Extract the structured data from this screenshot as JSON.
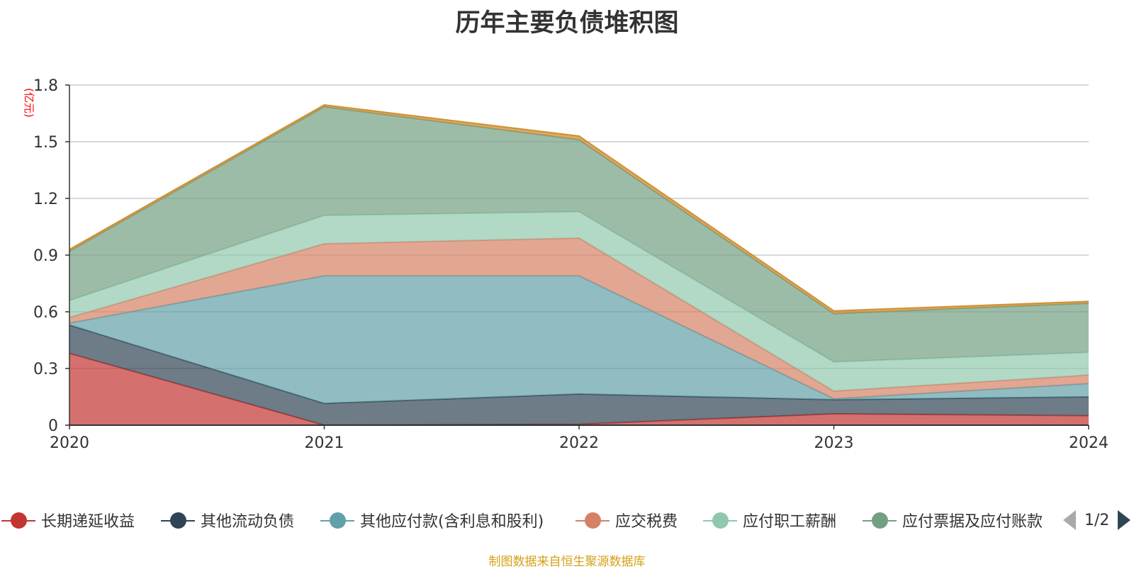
{
  "chart_data": {
    "type": "area",
    "stacked": true,
    "title": "历年主要负债堆积图",
    "ylabel": "(亿元)",
    "xlabel": "",
    "categories": [
      "2020",
      "2021",
      "2022",
      "2023",
      "2024"
    ],
    "ylim": [
      0,
      1.8
    ],
    "yticks": [
      "0",
      "0.3",
      "0.6",
      "0.9",
      "1.2",
      "1.5",
      "1.8"
    ],
    "grid": true,
    "legend_position": "bottom",
    "series": [
      {
        "name": "长期递延收益",
        "color": "#c23531",
        "values": [
          0.38,
          0.0,
          0.005,
          0.06,
          0.05
        ]
      },
      {
        "name": "其他流动负债",
        "color": "#2f4554",
        "values": [
          0.15,
          0.115,
          0.16,
          0.075,
          0.1
        ]
      },
      {
        "name": "其他应付款(含利息和股利)",
        "color": "#61a0a8",
        "values": [
          0.01,
          0.675,
          0.625,
          0.005,
          0.07
        ]
      },
      {
        "name": "应交税费",
        "color": "#d48265",
        "values": [
          0.03,
          0.17,
          0.2,
          0.04,
          0.045
        ]
      },
      {
        "name": "应付职工薪酬",
        "color": "#91c7ae",
        "values": [
          0.09,
          0.15,
          0.14,
          0.155,
          0.12
        ]
      },
      {
        "name": "应付票据及应付账款",
        "color": "#749f83",
        "values": [
          0.26,
          0.575,
          0.38,
          0.255,
          0.26
        ]
      },
      {
        "name": "",
        "color": "#ca8622",
        "values": [
          0.01,
          0.01,
          0.02,
          0.015,
          0.01
        ]
      }
    ]
  },
  "legend": {
    "visible_items": [
      {
        "label": "长期递延收益",
        "color": "#c23531"
      },
      {
        "label": "其他流动负债",
        "color": "#2f4554"
      },
      {
        "label": "其他应付款(含利息和股利)",
        "color": "#61a0a8"
      },
      {
        "label": "应交税费",
        "color": "#d48265"
      },
      {
        "label": "应付职工薪酬",
        "color": "#91c7ae"
      },
      {
        "label": "应付票据及应付账款",
        "color": "#749f83"
      }
    ],
    "page_indicator": "1/2"
  },
  "footer": {
    "source": "制图数据来自恒生聚源数据库"
  }
}
